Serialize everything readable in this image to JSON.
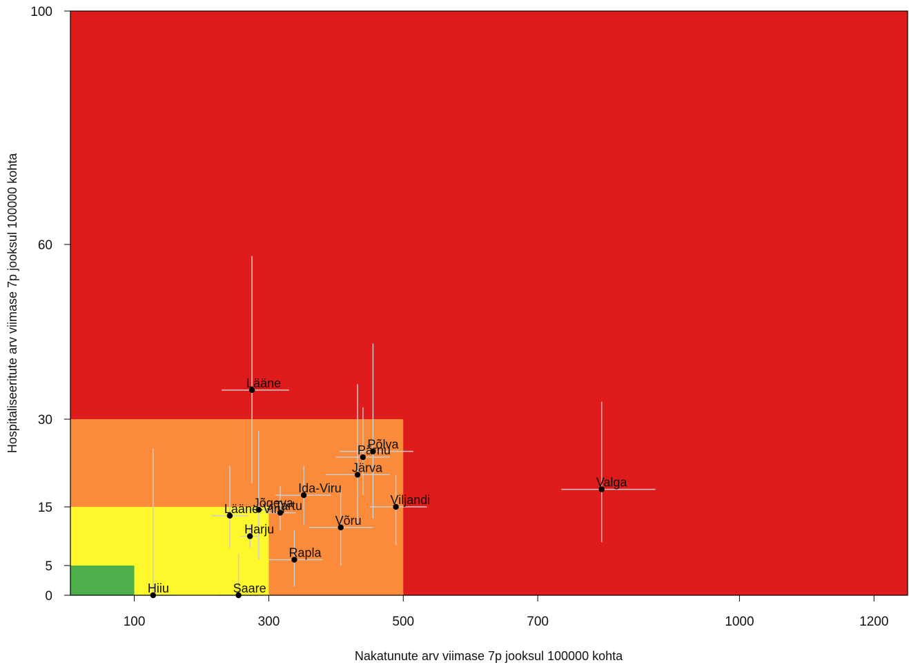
{
  "chart_data": {
    "type": "scatter",
    "title": "",
    "xlabel": "Nakatunute arv viimase 7p jooksul 100000 kohta",
    "ylabel": "Hospitaliseeritute arv viimase 7p jooksul 100000 kohta",
    "xlim": [
      0,
      1250
    ],
    "ylim": [
      0,
      100
    ],
    "x_ticks": [
      100,
      300,
      500,
      700,
      1000,
      1200
    ],
    "y_ticks": [
      0,
      5,
      15,
      30,
      60,
      100
    ],
    "grid": false,
    "zones": [
      {
        "name": "red",
        "color": "#e01b1b",
        "x": [
          0,
          1250
        ],
        "y": [
          0,
          100
        ]
      },
      {
        "name": "orange",
        "color": "#f98b3a",
        "x": [
          0,
          500
        ],
        "y": [
          0,
          30
        ]
      },
      {
        "name": "yellow",
        "color": "#fdf72b",
        "x": [
          0,
          300
        ],
        "y": [
          0,
          15
        ]
      },
      {
        "name": "green",
        "color": "#4caf4c",
        "x": [
          0,
          100
        ],
        "y": [
          0,
          5
        ]
      }
    ],
    "errorbar_color": "#cccccc",
    "point_color": "#000000",
    "points": [
      {
        "label": "Lääne",
        "x": 275,
        "y": 35.0,
        "xerr": [
          230,
          330
        ],
        "yerr": [
          19.0,
          58.0
        ]
      },
      {
        "label": "Põlva",
        "x": 455,
        "y": 24.5,
        "xerr": [
          405,
          515
        ],
        "yerr": [
          13.0,
          43.0
        ]
      },
      {
        "label": "Pärnu",
        "x": 440,
        "y": 23.5,
        "xerr": [
          400,
          480
        ],
        "yerr": [
          17.0,
          32.0
        ]
      },
      {
        "label": "Järva",
        "x": 432,
        "y": 20.5,
        "xerr": [
          385,
          480
        ],
        "yerr": [
          12.0,
          36.0
        ]
      },
      {
        "label": "Ida-Viru",
        "x": 352,
        "y": 17.0,
        "xerr": [
          310,
          392
        ],
        "yerr": [
          12.0,
          22.0
        ]
      },
      {
        "label": "Viljandi",
        "x": 489,
        "y": 15.0,
        "xerr": [
          450,
          535
        ],
        "yerr": [
          8.5,
          20.5
        ]
      },
      {
        "label": "Jõgeva",
        "x": 285,
        "y": 14.5,
        "xerr": [
          262,
          308
        ],
        "yerr": [
          6.0,
          28.0
        ]
      },
      {
        "label": "Tartu",
        "x": 317,
        "y": 14.0,
        "xerr": [
          295,
          340
        ],
        "yerr": [
          11.0,
          18.5
        ]
      },
      {
        "label": "Lääne-Viru",
        "x": 242,
        "y": 13.5,
        "xerr": [
          215,
          270
        ],
        "yerr": [
          8.0,
          22.0
        ]
      },
      {
        "label": "Võru",
        "x": 407,
        "y": 11.5,
        "xerr": [
          360,
          455
        ],
        "yerr": [
          5.0,
          18.0
        ]
      },
      {
        "label": "Harju",
        "x": 272,
        "y": 10.0,
        "xerr": [
          258,
          285
        ],
        "yerr": [
          8.0,
          12.0
        ]
      },
      {
        "label": "Rapla",
        "x": 338,
        "y": 6.0,
        "xerr": [
          300,
          380
        ],
        "yerr": [
          1.5,
          11.0
        ]
      },
      {
        "label": "Valga",
        "x": 795,
        "y": 18.0,
        "xerr": [
          735,
          875
        ],
        "yerr": [
          9.0,
          33.0
        ]
      },
      {
        "label": "Hiiu",
        "x": 128,
        "y": 0.0,
        "xerr": [
          100,
          160
        ],
        "yerr": [
          0.0,
          25.0
        ]
      },
      {
        "label": "Saare",
        "x": 255,
        "y": 0.0,
        "xerr": [
          225,
          285
        ],
        "yerr": [
          0.0,
          7.0
        ]
      }
    ]
  }
}
